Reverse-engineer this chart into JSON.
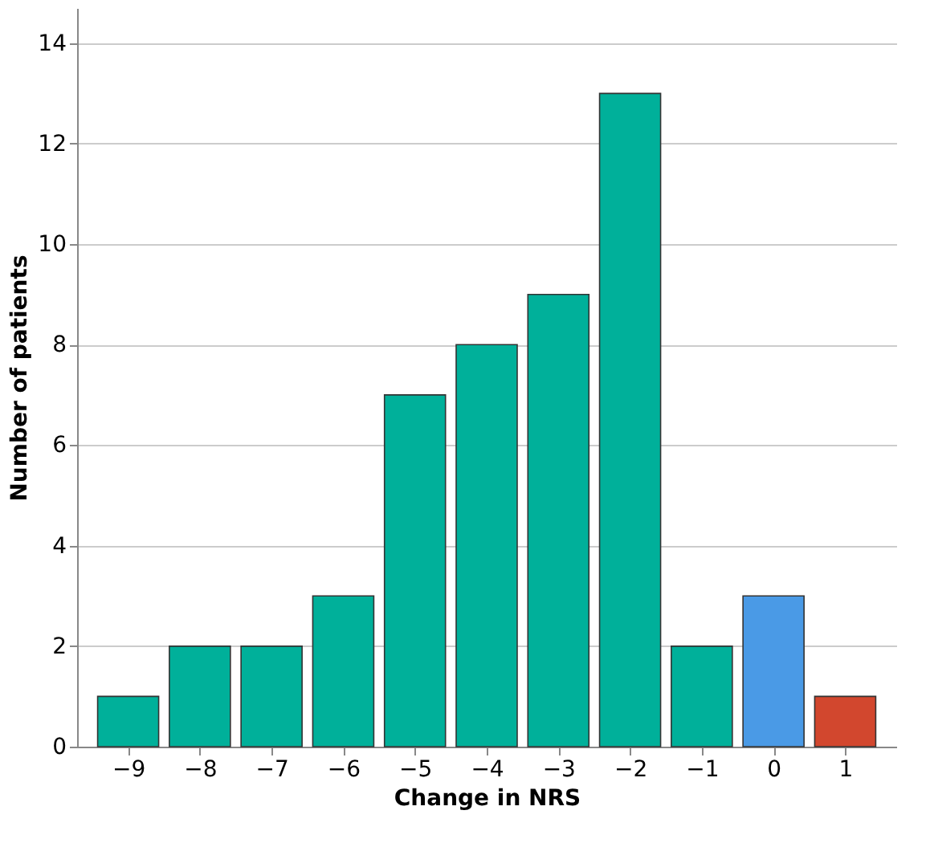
{
  "chart_data": {
    "type": "bar",
    "xlabel": "Change in NRS",
    "ylabel": "Number of patients",
    "categories": [
      "−9",
      "−8",
      "−7",
      "−6",
      "−5",
      "−4",
      "−3",
      "−2",
      "−1",
      "0",
      "1"
    ],
    "values": [
      1,
      2,
      2,
      3,
      7,
      8,
      9,
      13,
      2,
      3,
      1
    ],
    "colors": [
      "#00b09a",
      "#00b09a",
      "#00b09a",
      "#00b09a",
      "#00b09a",
      "#00b09a",
      "#00b09a",
      "#00b09a",
      "#00b09a",
      "#4a9ae6",
      "#d2472e"
    ],
    "ylim": [
      0,
      14.7
    ],
    "yticks": [
      0,
      2,
      4,
      6,
      8,
      10,
      12,
      14
    ],
    "grid": "y",
    "legend": false
  }
}
